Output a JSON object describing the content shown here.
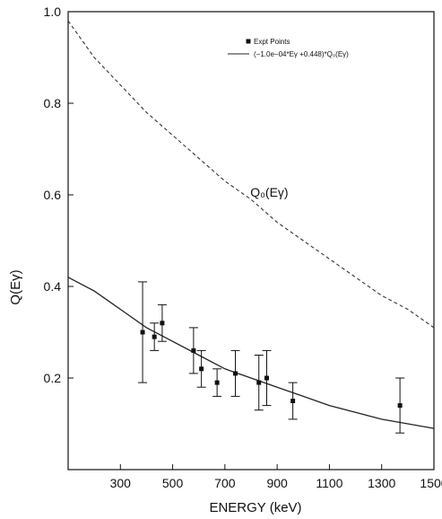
{
  "chart_data": {
    "type": "scatter",
    "xlabel": "ENERGY (keV)",
    "ylabel": "Q(Eγ)",
    "xlim": [
      100,
      1500
    ],
    "ylim": [
      0.0,
      1.0
    ],
    "x_ticks": [
      300,
      500,
      700,
      900,
      1100,
      1300,
      1500
    ],
    "x_tick_labels": [
      "300",
      "500",
      "700",
      "900",
      "1100",
      "1300",
      "1500"
    ],
    "y_ticks": [
      0.2,
      0.4,
      0.6,
      0.8,
      1.0
    ],
    "y_tick_labels": [
      "0.2",
      "0.4",
      "0.6",
      "0.8",
      "1.0"
    ],
    "grid": false,
    "legend_position": "top-right",
    "legend": [
      {
        "label": "Expt Points",
        "marker": "filled-square"
      },
      {
        "label": "(−1.0e−04*Eγ +0.448)*Q₀(Eγ)",
        "style": "solid"
      }
    ],
    "annotations": [
      {
        "text": "Q₀(Eγ)",
        "x": 870,
        "y": 0.6
      }
    ],
    "series": [
      {
        "name": "Expt Points",
        "kind": "points-with-errorbars",
        "color": "#111111",
        "x": [
          385,
          430,
          460,
          580,
          610,
          670,
          740,
          830,
          860,
          960,
          1370
        ],
        "y": [
          0.3,
          0.29,
          0.32,
          0.26,
          0.22,
          0.19,
          0.21,
          0.19,
          0.2,
          0.15,
          0.14
        ],
        "err": [
          0.11,
          0.03,
          0.04,
          0.05,
          0.04,
          0.03,
          0.05,
          0.06,
          0.06,
          0.04,
          0.06
        ]
      },
      {
        "name": "(−1.0e−04*Eγ +0.448)*Q₀(Eγ)",
        "kind": "curve",
        "style": "solid",
        "color": "#222222",
        "x": [
          100,
          200,
          300,
          400,
          500,
          600,
          700,
          800,
          900,
          1000,
          1100,
          1200,
          1300,
          1400,
          1500
        ],
        "y": [
          0.42,
          0.39,
          0.35,
          0.31,
          0.28,
          0.25,
          0.22,
          0.2,
          0.18,
          0.16,
          0.14,
          0.125,
          0.11,
          0.1,
          0.09
        ]
      },
      {
        "name": "Q₀(Eγ)",
        "kind": "curve",
        "style": "dashed",
        "color": "#333333",
        "x": [
          100,
          200,
          300,
          400,
          500,
          600,
          700,
          800,
          900,
          1000,
          1100,
          1200,
          1300,
          1400,
          1500
        ],
        "y": [
          0.98,
          0.9,
          0.84,
          0.78,
          0.73,
          0.68,
          0.63,
          0.59,
          0.54,
          0.5,
          0.46,
          0.42,
          0.38,
          0.35,
          0.31
        ]
      }
    ]
  }
}
